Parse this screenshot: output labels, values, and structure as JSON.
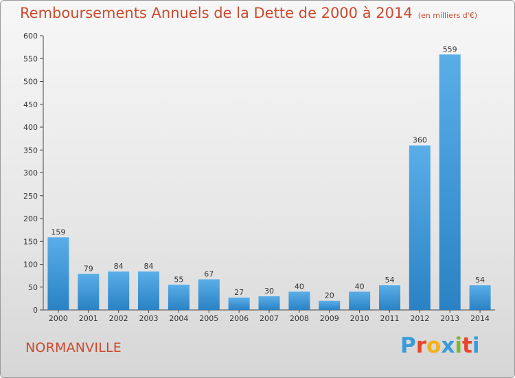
{
  "header": {
    "title": "Remboursements Annuels de la Dette de 2000 à 2014",
    "subtitle": "(en milliers d'€)"
  },
  "footer": {
    "commune": "NORMANVILLE",
    "brand": "Proxiti",
    "brand_colors": [
      "#3a9bd8",
      "#e8452c",
      "#f2b11a",
      "#3a9bd8",
      "#7ab830",
      "#e8452c",
      "#3a9bd8"
    ]
  },
  "chart_data": {
    "type": "bar",
    "title": "Remboursements Annuels de la Dette de 2000 à 2014",
    "subtitle": "(en milliers d'€)",
    "categories": [
      "2000",
      "2001",
      "2002",
      "2003",
      "2004",
      "2005",
      "2006",
      "2007",
      "2008",
      "2009",
      "2010",
      "2011",
      "2012",
      "2013",
      "2014"
    ],
    "values": [
      159,
      79,
      84,
      84,
      55,
      67,
      27,
      30,
      40,
      20,
      40,
      54,
      360,
      559,
      54
    ],
    "ylim": [
      0,
      600
    ],
    "yticks": [
      0,
      50,
      100,
      150,
      200,
      250,
      300,
      350,
      400,
      450,
      500,
      550,
      600
    ],
    "grid": false,
    "bar_color_top": "#5aaee8",
    "bar_color_bottom": "#2a82c4"
  }
}
